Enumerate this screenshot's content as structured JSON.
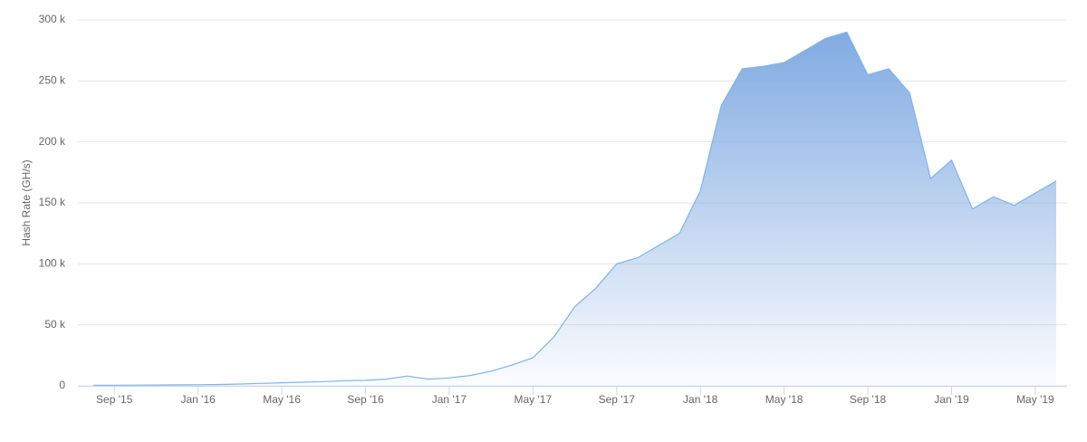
{
  "chart_data": {
    "type": "area",
    "y_label": "Hash Rate (GH/s)",
    "x": [
      "2015-08",
      "2015-09",
      "2015-10",
      "2015-11",
      "2015-12",
      "2016-01",
      "2016-02",
      "2016-03",
      "2016-04",
      "2016-05",
      "2016-06",
      "2016-07",
      "2016-08",
      "2016-09",
      "2016-10",
      "2016-11",
      "2016-12",
      "2017-01",
      "2017-02",
      "2017-03",
      "2017-04",
      "2017-05",
      "2017-06",
      "2017-07",
      "2017-08",
      "2017-09",
      "2017-10",
      "2017-11",
      "2017-12",
      "2018-01",
      "2018-02",
      "2018-03",
      "2018-04",
      "2018-05",
      "2018-06",
      "2018-07",
      "2018-08",
      "2018-09",
      "2018-10",
      "2018-11",
      "2018-12",
      "2019-01",
      "2019-02",
      "2019-03",
      "2019-04",
      "2019-05",
      "2019-06"
    ],
    "series": [
      {
        "name": "Hash Rate",
        "color": "#7cb5ec",
        "values": [
          500,
          500,
          600,
          700,
          800,
          900,
          1100,
          1500,
          2000,
          2500,
          3000,
          3500,
          4200,
          4500,
          5500,
          8000,
          5500,
          6500,
          8500,
          12000,
          17000,
          23000,
          40000,
          65000,
          80000,
          100000,
          105000,
          115000,
          125000,
          160000,
          230000,
          260000,
          262000,
          265000,
          275000,
          285000,
          290000,
          255000,
          260000,
          240000,
          170000,
          185000,
          145000,
          155000,
          148000,
          158000,
          168000
        ]
      }
    ],
    "xlim": [
      "2015-07",
      "2019-06"
    ],
    "xticks": [
      {
        "value": "2015-09",
        "label": "Sep '15"
      },
      {
        "value": "2016-01",
        "label": "Jan '16"
      },
      {
        "value": "2016-05",
        "label": "May '16"
      },
      {
        "value": "2016-09",
        "label": "Sep '16"
      },
      {
        "value": "2017-01",
        "label": "Jan '17"
      },
      {
        "value": "2017-05",
        "label": "May '17"
      },
      {
        "value": "2017-09",
        "label": "Sep '17"
      },
      {
        "value": "2018-01",
        "label": "Jan '18"
      },
      {
        "value": "2018-05",
        "label": "May '18"
      },
      {
        "value": "2018-09",
        "label": "Sep '18"
      },
      {
        "value": "2019-01",
        "label": "Jan '19"
      },
      {
        "value": "2019-05",
        "label": "May '19"
      }
    ],
    "ylim": [
      0,
      300000
    ],
    "yticks": [
      0,
      {
        "value": 50000,
        "label": "50 k"
      },
      {
        "value": 100000,
        "label": "100 k"
      },
      {
        "value": 150000,
        "label": "150 k"
      },
      {
        "value": 200000,
        "label": "200 k"
      },
      {
        "value": 250000,
        "label": "250 k"
      },
      {
        "value": 300000,
        "label": "300 k"
      }
    ],
    "grid": true
  }
}
